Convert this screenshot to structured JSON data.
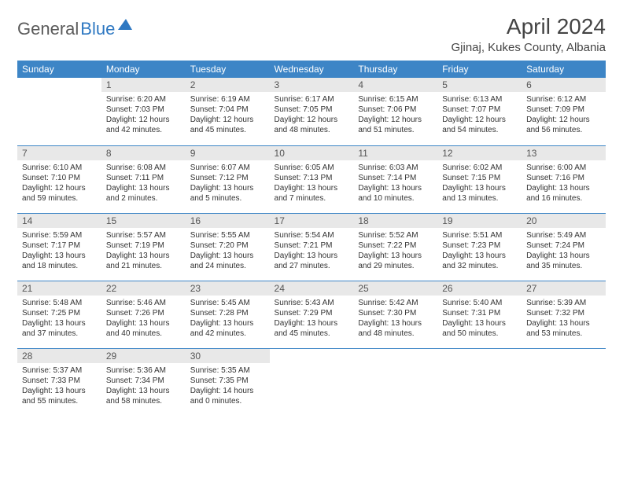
{
  "brand": {
    "part1": "General",
    "part2": "Blue"
  },
  "title": "April 2024",
  "subtitle": "Gjinaj, Kukes County, Albania",
  "colors": {
    "header_bg": "#3d85c6",
    "header_text": "#ffffff",
    "daynum_bg": "#e8e8e8",
    "rule": "#3d85c6",
    "logo_gray": "#5a5a5a",
    "logo_blue": "#2e78c2"
  },
  "weekdays": [
    "Sunday",
    "Monday",
    "Tuesday",
    "Wednesday",
    "Thursday",
    "Friday",
    "Saturday"
  ],
  "weeks": [
    [
      null,
      {
        "n": "1",
        "sr": "6:20 AM",
        "ss": "7:03 PM",
        "dl": "12 hours and 42 minutes."
      },
      {
        "n": "2",
        "sr": "6:19 AM",
        "ss": "7:04 PM",
        "dl": "12 hours and 45 minutes."
      },
      {
        "n": "3",
        "sr": "6:17 AM",
        "ss": "7:05 PM",
        "dl": "12 hours and 48 minutes."
      },
      {
        "n": "4",
        "sr": "6:15 AM",
        "ss": "7:06 PM",
        "dl": "12 hours and 51 minutes."
      },
      {
        "n": "5",
        "sr": "6:13 AM",
        "ss": "7:07 PM",
        "dl": "12 hours and 54 minutes."
      },
      {
        "n": "6",
        "sr": "6:12 AM",
        "ss": "7:09 PM",
        "dl": "12 hours and 56 minutes."
      }
    ],
    [
      {
        "n": "7",
        "sr": "6:10 AM",
        "ss": "7:10 PM",
        "dl": "12 hours and 59 minutes."
      },
      {
        "n": "8",
        "sr": "6:08 AM",
        "ss": "7:11 PM",
        "dl": "13 hours and 2 minutes."
      },
      {
        "n": "9",
        "sr": "6:07 AM",
        "ss": "7:12 PM",
        "dl": "13 hours and 5 minutes."
      },
      {
        "n": "10",
        "sr": "6:05 AM",
        "ss": "7:13 PM",
        "dl": "13 hours and 7 minutes."
      },
      {
        "n": "11",
        "sr": "6:03 AM",
        "ss": "7:14 PM",
        "dl": "13 hours and 10 minutes."
      },
      {
        "n": "12",
        "sr": "6:02 AM",
        "ss": "7:15 PM",
        "dl": "13 hours and 13 minutes."
      },
      {
        "n": "13",
        "sr": "6:00 AM",
        "ss": "7:16 PM",
        "dl": "13 hours and 16 minutes."
      }
    ],
    [
      {
        "n": "14",
        "sr": "5:59 AM",
        "ss": "7:17 PM",
        "dl": "13 hours and 18 minutes."
      },
      {
        "n": "15",
        "sr": "5:57 AM",
        "ss": "7:19 PM",
        "dl": "13 hours and 21 minutes."
      },
      {
        "n": "16",
        "sr": "5:55 AM",
        "ss": "7:20 PM",
        "dl": "13 hours and 24 minutes."
      },
      {
        "n": "17",
        "sr": "5:54 AM",
        "ss": "7:21 PM",
        "dl": "13 hours and 27 minutes."
      },
      {
        "n": "18",
        "sr": "5:52 AM",
        "ss": "7:22 PM",
        "dl": "13 hours and 29 minutes."
      },
      {
        "n": "19",
        "sr": "5:51 AM",
        "ss": "7:23 PM",
        "dl": "13 hours and 32 minutes."
      },
      {
        "n": "20",
        "sr": "5:49 AM",
        "ss": "7:24 PM",
        "dl": "13 hours and 35 minutes."
      }
    ],
    [
      {
        "n": "21",
        "sr": "5:48 AM",
        "ss": "7:25 PM",
        "dl": "13 hours and 37 minutes."
      },
      {
        "n": "22",
        "sr": "5:46 AM",
        "ss": "7:26 PM",
        "dl": "13 hours and 40 minutes."
      },
      {
        "n": "23",
        "sr": "5:45 AM",
        "ss": "7:28 PM",
        "dl": "13 hours and 42 minutes."
      },
      {
        "n": "24",
        "sr": "5:43 AM",
        "ss": "7:29 PM",
        "dl": "13 hours and 45 minutes."
      },
      {
        "n": "25",
        "sr": "5:42 AM",
        "ss": "7:30 PM",
        "dl": "13 hours and 48 minutes."
      },
      {
        "n": "26",
        "sr": "5:40 AM",
        "ss": "7:31 PM",
        "dl": "13 hours and 50 minutes."
      },
      {
        "n": "27",
        "sr": "5:39 AM",
        "ss": "7:32 PM",
        "dl": "13 hours and 53 minutes."
      }
    ],
    [
      {
        "n": "28",
        "sr": "5:37 AM",
        "ss": "7:33 PM",
        "dl": "13 hours and 55 minutes."
      },
      {
        "n": "29",
        "sr": "5:36 AM",
        "ss": "7:34 PM",
        "dl": "13 hours and 58 minutes."
      },
      {
        "n": "30",
        "sr": "5:35 AM",
        "ss": "7:35 PM",
        "dl": "14 hours and 0 minutes."
      },
      null,
      null,
      null,
      null
    ]
  ],
  "labels": {
    "sunrise": "Sunrise:",
    "sunset": "Sunset:",
    "daylight": "Daylight:"
  }
}
